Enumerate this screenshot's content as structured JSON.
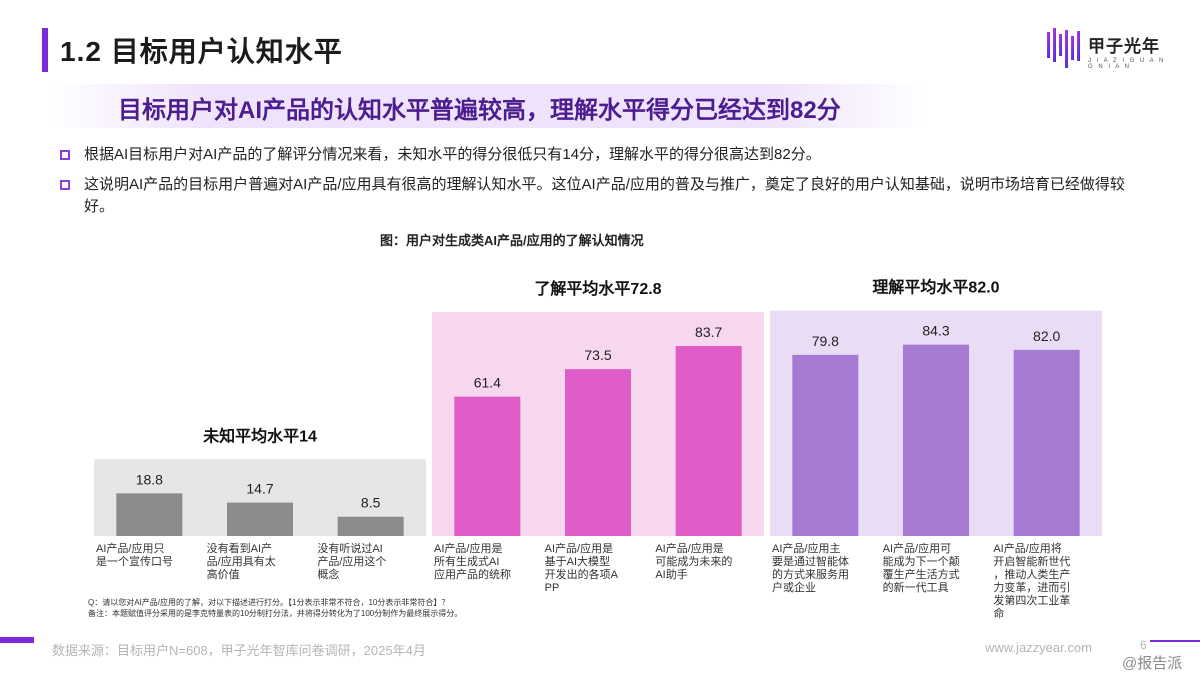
{
  "header": {
    "title": "1.2 目标用户认知水平",
    "logo_name": "甲子光年",
    "logo_tagline": "J I A Z I G U A N G N I A N"
  },
  "subhead": "目标用户对AI产品的认知水平普遍较高，理解水平得分已经达到82分",
  "bullets": [
    "根据AI目标用户对AI产品的了解评分情况来看，未知水平的得分很低只有14分，理解水平的得分很高达到82分。",
    "这说明AI产品的目标用户普遍对AI产品/应用具有很高的理解认知水平。这位AI产品/应用的普及与推广，奠定了良好的用户认知基础，说明市场培育已经做得较好。"
  ],
  "figure_title": "图：用户对生成类AI产品/应用的了解认知情况",
  "chart_data": {
    "type": "bar",
    "ylim": [
      0,
      100
    ],
    "groups": [
      {
        "label": "未知平均水平14",
        "panel_color": "#e6e6e6",
        "bar_color": "#8c8c8c",
        "items": [
          {
            "category": "AI产品/应用只是一个宣传口号",
            "value": 18.8,
            "value_label": "18.8"
          },
          {
            "category": "没有看到AI产品/应用具有太高价值",
            "value": 14.7,
            "value_label": "14.7"
          },
          {
            "category": "没有听说过AI产品/应用这个概念",
            "value": 8.5,
            "value_label": "8.5"
          }
        ]
      },
      {
        "label": "了解平均水平72.8",
        "panel_color": "#f7d6ef",
        "bar_color": "#e05cc8",
        "items": [
          {
            "category": "AI产品/应用是所有生成式AI应用产品的统称",
            "value": 61.4,
            "value_label": "61.4"
          },
          {
            "category": "AI产品/应用是基于AI大模型开发出的各项APP",
            "value": 73.5,
            "value_label": "73.5"
          },
          {
            "category": "AI产品/应用是可能成为未来的AI助手",
            "value": 83.7,
            "value_label": "83.7"
          }
        ]
      },
      {
        "label": "理解平均水平82.0",
        "panel_color": "#eadcf5",
        "bar_color": "#a57bd1",
        "items": [
          {
            "category": "AI产品/应用主要是通过智能体的方式来服务用户或企业",
            "value": 79.8,
            "value_label": "79.8"
          },
          {
            "category": "AI产品/应用可能成为下一个颠覆生产生活方式的新一代工具",
            "value": 84.3,
            "value_label": "84.3"
          },
          {
            "category": "AI产品/应用将开启智能新世代，推动人类生产力变革，进而引发第四次工业革命",
            "value": 82.0,
            "value_label": "82.0"
          }
        ]
      }
    ]
  },
  "notes": {
    "q": "Q：请以您对AI产品/应用的了解，对以下描述进行打分。【1分表示非常不符合，10分表示非常符合】？",
    "remark": "备注：本题赋值评分采用的是李克特量表的10分制打分法，并将得分转化为了100分制作为最终展示得分。"
  },
  "footer": {
    "source": "数据来源：目标用户N=608，甲子光年智库问卷调研，2025年4月",
    "site": "www.jazzyear.com",
    "page": "6",
    "corner": "@报告派"
  },
  "colors": {
    "accent": "#7a2ad6",
    "subhead": "#4b1d8f"
  }
}
